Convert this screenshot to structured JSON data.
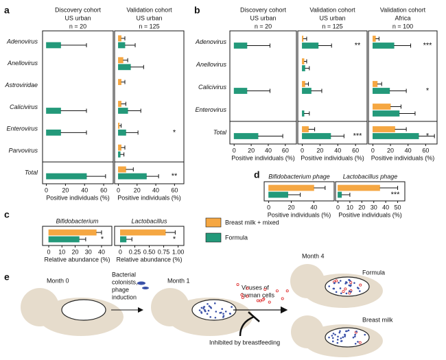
{
  "legend": [
    {
      "name": "Breast milk + mixed",
      "color": "#f5a742"
    },
    {
      "name": "Formula",
      "color": "#23997a"
    }
  ],
  "chart_data": [
    {
      "type": "bar",
      "panel": "a",
      "categories": [
        "Adenovirus",
        "Anellovirus",
        "Astroviridae",
        "Calicivirus",
        "Enterovirus",
        "Parvovirus",
        "Total"
      ],
      "subplots": [
        {
          "title": [
            "Discovery cohort",
            "US urban",
            "n = 20"
          ],
          "xlabel": "Positive individuals (%)",
          "xlim": [
            -4,
            70
          ],
          "xticks": [
            0,
            20,
            40,
            60
          ],
          "series": [
            {
              "values": [
                null,
                null,
                null,
                null,
                null,
                null,
                null
              ],
              "errors": [
                null,
                null,
                null,
                null,
                null,
                null,
                null
              ]
            },
            {
              "values": [
                15,
                0,
                0,
                15,
                15,
                0,
                42
              ],
              "errors": [
                27,
                0,
                0,
                27,
                27,
                0,
                20
              ]
            }
          ],
          "annotations": [
            null,
            null,
            null,
            null,
            null,
            null,
            null
          ]
        },
        {
          "title": [
            "Validation cohort",
            "US urban",
            "n = 125"
          ],
          "xlabel": "Positive individuals (%)",
          "xlim": [
            -4,
            70
          ],
          "xticks": [
            0,
            20,
            40,
            60
          ],
          "series": [
            {
              "values": [
                3,
                5,
                3,
                3,
                1,
                3,
                8
              ],
              "errors": [
                4,
                5,
                4,
                5,
                2,
                4,
                8
              ]
            },
            {
              "values": [
                7,
                13,
                0,
                10,
                8,
                2,
                30
              ],
              "errors": [
                11,
                14,
                0,
                14,
                13,
                4,
                13
              ]
            }
          ],
          "annotations": [
            null,
            null,
            null,
            null,
            "*",
            null,
            "**"
          ]
        }
      ]
    },
    {
      "type": "bar",
      "panel": "b",
      "categories": [
        "Adenovirus",
        "Anellovirus",
        "Calicivirus",
        "Enterovirus",
        "Total"
      ],
      "subplots": [
        {
          "title": [
            "Discovery cohort",
            "US urban",
            "n = 20"
          ],
          "xlabel": "Positive individuals (%)",
          "xlim": [
            -5,
            73
          ],
          "xticks": [
            0,
            20,
            40,
            60
          ],
          "series": [
            {
              "values": [
                null,
                null,
                null,
                null,
                null
              ],
              "errors": [
                null,
                null,
                null,
                null,
                null
              ]
            },
            {
              "values": [
                15,
                0,
                15,
                0,
                28
              ],
              "errors": [
                27,
                0,
                27,
                0,
                29
              ]
            }
          ],
          "annotations": [
            null,
            null,
            null,
            null,
            null
          ]
        },
        {
          "title": [
            "Validation cohort",
            "US urban",
            "n = 125"
          ],
          "xlabel": "Positive individuals (%)",
          "xlim": [
            -5,
            73
          ],
          "xticks": [
            0,
            20,
            40,
            60
          ],
          "series": [
            {
              "values": [
                1,
                2,
                3,
                0,
                7
              ],
              "errors": [
                4,
                3,
                4,
                0,
                7
              ]
            },
            {
              "values": [
                18,
                3,
                10,
                2,
                32
              ],
              "errors": [
                15,
                5,
                12,
                6,
                15
              ]
            }
          ],
          "annotations": [
            "**",
            null,
            null,
            null,
            "***"
          ]
        },
        {
          "title": [
            "Validation cohort",
            "Africa",
            "n = 100"
          ],
          "xlabel": "Positive individuals (%)",
          "xlim": [
            -5,
            73
          ],
          "xticks": [
            0,
            20,
            40,
            60
          ],
          "series": [
            {
              "values": [
                3,
                0,
                5,
                20,
                25
              ],
              "errors": [
                4,
                0,
                5,
                12,
                13
              ]
            },
            {
              "values": [
                24,
                0,
                19,
                30,
                52
              ],
              "errors": [
                19,
                0,
                19,
                18,
                18
              ]
            }
          ],
          "annotations": [
            "***",
            null,
            "*",
            null,
            "*"
          ]
        }
      ]
    },
    {
      "type": "bar",
      "panel": "c",
      "subplots": [
        {
          "title": [
            "Bifidobacterium"
          ],
          "xlabel": "Relative abundance (%)",
          "xlim": [
            -4.7,
            47.8
          ],
          "xticks": [
            0,
            10,
            20,
            30,
            40
          ],
          "series": [
            {
              "values": [
                36
              ],
              "errors": [
                4
              ]
            },
            {
              "values": [
                23
              ],
              "errors": [
                5
              ]
            }
          ],
          "annotations": [
            "*"
          ]
        },
        {
          "title": [
            "Lactobacillus"
          ],
          "xlabel": "Relative abundance (%)",
          "xlim": [
            -0.1,
            1.1
          ],
          "xticks": [
            0,
            0.25,
            {
              "value": 0.5,
              "label": "0.50"
            },
            0.75,
            {
              "value": 1,
              "label": "1.00"
            }
          ],
          "series": [
            {
              "values": [
                0.78
              ],
              "errors": [
                0.17
              ]
            },
            {
              "values": [
                0.1
              ],
              "errors": [
                0.1
              ]
            }
          ],
          "annotations": [
            "*"
          ]
        }
      ]
    },
    {
      "type": "bar",
      "panel": "d",
      "subplots": [
        {
          "title": [
            "Bifidobacterium phage"
          ],
          "xlabel": "Positive individuals (%)",
          "xlim": [
            -4,
            58
          ],
          "xticks": [
            0,
            20,
            40
          ],
          "series": [
            {
              "values": [
                40
              ],
              "errors": [
                10
              ]
            },
            {
              "values": [
                17
              ],
              "errors": [
                11
              ]
            }
          ],
          "annotations": [
            null
          ]
        },
        {
          "title": [
            "Lactobacillus phage"
          ],
          "xlabel": "Positive individuals (%)",
          "xlim": [
            -2,
            56
          ],
          "xticks": [
            0,
            10,
            20,
            30,
            40,
            50
          ],
          "series": [
            {
              "values": [
                35
              ],
              "errors": [
                15
              ]
            },
            {
              "values": [
                3
              ],
              "errors": [
                7
              ]
            }
          ],
          "annotations": [
            "***"
          ]
        }
      ]
    }
  ],
  "diagram": {
    "panel": "e",
    "month0": "Month 0",
    "month1": "Month 1",
    "month4": "Month 4",
    "colonists": [
      "Bacterial",
      "colonists,",
      "phage",
      "induction"
    ],
    "viruses": [
      "Viruses of",
      "human cells"
    ],
    "inhibited": "Inhibited by breastfeeding",
    "formula": "Formula",
    "breast_milk": "Breast milk"
  }
}
